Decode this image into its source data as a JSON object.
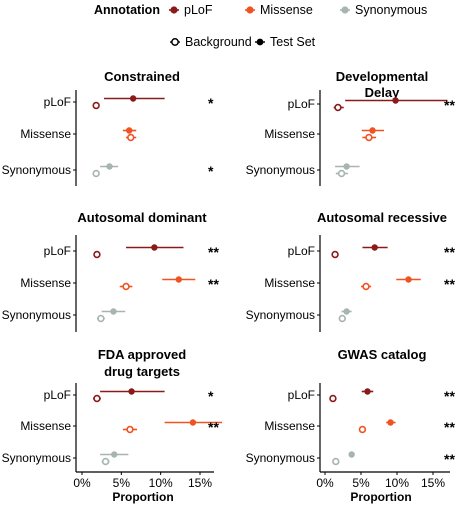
{
  "colors": {
    "pLoF": "#8b1a1a",
    "Missense": "#f05323",
    "Synonymous": "#a8b5ae",
    "ink": "#000000"
  },
  "legend": {
    "annotation_title": "Annotation",
    "annotation_items": [
      {
        "label": "pLoF",
        "key": "pLoF"
      },
      {
        "label": "Missense",
        "key": "Missense"
      },
      {
        "label": "Synonymous",
        "key": "Synonymous"
      }
    ],
    "set_items": [
      {
        "label": "Background",
        "marker": "open-circle"
      },
      {
        "label": "Test Set",
        "marker": "filled-circle"
      }
    ]
  },
  "chart_data": {
    "type": "scatter",
    "subtype": "dot-and-interval",
    "categories": [
      "pLoF",
      "Missense",
      "Synonymous"
    ],
    "x_ticks": [
      "0%",
      "5%",
      "10%",
      "15%"
    ],
    "x_tick_values": [
      0,
      5,
      10,
      15
    ],
    "xlim": [
      -0.4,
      19
    ],
    "xlabel": "Proportion",
    "panels": [
      {
        "title": [
          "Constrained"
        ],
        "rows": [
          {
            "category": "pLoF",
            "test": {
              "value": 6.5,
              "low": 2.8,
              "high": 10.5
            },
            "background": {
              "value": 1.8,
              "low": 1.6,
              "high": 2.0
            },
            "sig": "*"
          },
          {
            "category": "Missense",
            "test": {
              "value": 6.0,
              "low": 5.2,
              "high": 6.9
            },
            "background": {
              "value": 6.2,
              "low": 5.6,
              "high": 6.9
            },
            "sig": ""
          },
          {
            "category": "Synonymous",
            "test": {
              "value": 3.5,
              "low": 2.3,
              "high": 4.6
            },
            "background": {
              "value": 1.8,
              "low": 1.6,
              "high": 2.0
            },
            "sig": "*"
          }
        ]
      },
      {
        "title": [
          "Developmental",
          "Delay"
        ],
        "rows": [
          {
            "category": "pLoF",
            "test": {
              "value": 9.8,
              "low": 2.8,
              "high": 17.0
            },
            "background": {
              "value": 1.8,
              "low": 1.2,
              "high": 2.6
            },
            "sig": "**"
          },
          {
            "category": "Missense",
            "test": {
              "value": 6.6,
              "low": 5.1,
              "high": 8.2
            },
            "background": {
              "value": 6.1,
              "low": 5.2,
              "high": 7.1
            },
            "sig": ""
          },
          {
            "category": "Synonymous",
            "test": {
              "value": 3.0,
              "low": 1.4,
              "high": 4.8
            },
            "background": {
              "value": 2.3,
              "low": 1.5,
              "high": 3.2
            },
            "sig": ""
          }
        ]
      },
      {
        "title": [
          "Autosomal dominant"
        ],
        "rows": [
          {
            "category": "pLoF",
            "test": {
              "value": 9.2,
              "low": 5.6,
              "high": 12.9
            },
            "background": {
              "value": 1.9,
              "low": 1.6,
              "high": 2.3
            },
            "sig": "**"
          },
          {
            "category": "Missense",
            "test": {
              "value": 12.3,
              "low": 10.2,
              "high": 14.4
            },
            "background": {
              "value": 5.6,
              "low": 4.8,
              "high": 6.4
            },
            "sig": "**"
          },
          {
            "category": "Synonymous",
            "test": {
              "value": 4.0,
              "low": 2.5,
              "high": 5.5
            },
            "background": {
              "value": 2.4,
              "low": 1.9,
              "high": 2.9
            },
            "sig": ""
          }
        ]
      },
      {
        "title": [
          "Autosomal recessive"
        ],
        "rows": [
          {
            "category": "pLoF",
            "test": {
              "value": 6.9,
              "low": 5.2,
              "high": 8.7
            },
            "background": {
              "value": 1.4,
              "low": 1.1,
              "high": 1.8
            },
            "sig": "**"
          },
          {
            "category": "Missense",
            "test": {
              "value": 11.6,
              "low": 9.9,
              "high": 13.3
            },
            "background": {
              "value": 5.7,
              "low": 5.0,
              "high": 6.4
            },
            "sig": "**"
          },
          {
            "category": "Synonymous",
            "test": {
              "value": 3.0,
              "low": 2.3,
              "high": 3.7
            },
            "background": {
              "value": 2.4,
              "low": 2.0,
              "high": 2.8
            },
            "sig": ""
          }
        ]
      },
      {
        "title": [
          "FDA approved",
          "drug targets"
        ],
        "rows": [
          {
            "category": "pLoF",
            "test": {
              "value": 6.3,
              "low": 2.3,
              "high": 10.5
            },
            "background": {
              "value": 1.9,
              "low": 1.4,
              "high": 2.4
            },
            "sig": "*"
          },
          {
            "category": "Missense",
            "test": {
              "value": 14.1,
              "low": 10.5,
              "high": 17.8
            },
            "background": {
              "value": 6.1,
              "low": 5.2,
              "high": 7.0
            },
            "sig": "**"
          },
          {
            "category": "Synonymous",
            "test": {
              "value": 4.1,
              "low": 2.3,
              "high": 5.9
            },
            "background": {
              "value": 3.0,
              "low": 2.5,
              "high": 3.5
            },
            "sig": ""
          }
        ]
      },
      {
        "title": [
          "GWAS catalog"
        ],
        "rows": [
          {
            "category": "pLoF",
            "test": {
              "value": 5.9,
              "low": 5.1,
              "high": 6.7
            },
            "background": {
              "value": 1.1,
              "low": 0.9,
              "high": 1.3
            },
            "sig": "**"
          },
          {
            "category": "Missense",
            "test": {
              "value": 9.1,
              "low": 8.5,
              "high": 9.8
            },
            "background": {
              "value": 5.2,
              "low": 4.9,
              "high": 5.5
            },
            "sig": "**"
          },
          {
            "category": "Synonymous",
            "test": {
              "value": 3.7,
              "low": 3.3,
              "high": 4.1
            },
            "background": {
              "value": 1.5,
              "low": 1.3,
              "high": 1.7
            },
            "sig": "**"
          }
        ]
      }
    ]
  }
}
